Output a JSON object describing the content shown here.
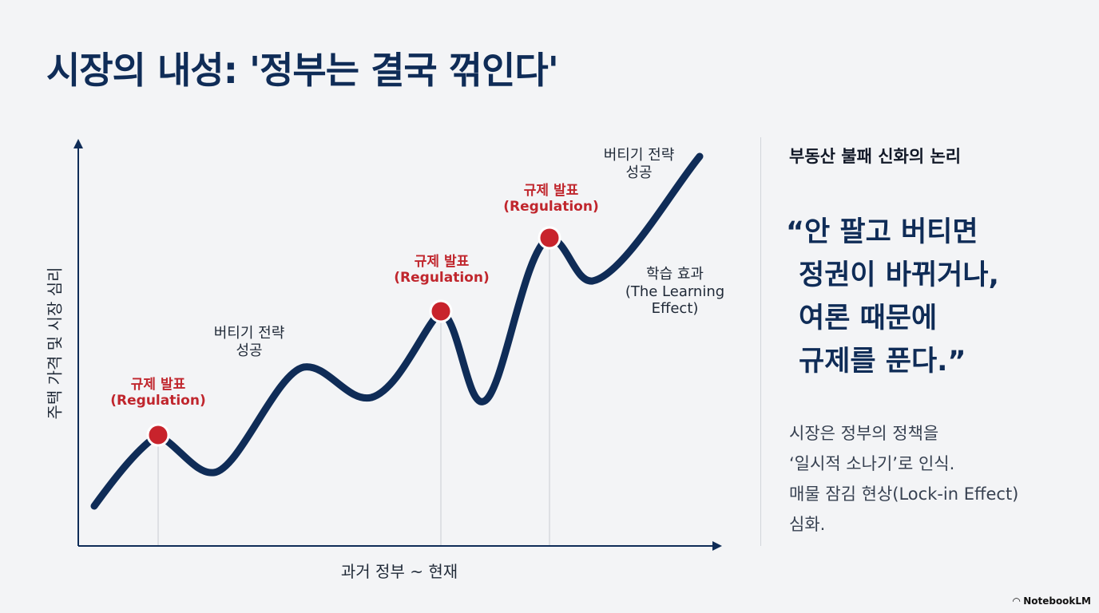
{
  "title": "시장의 내성: '정부는 결국 꺾인다'",
  "diagram": {
    "y_axis_label": "주택 가격 및 시장 심리",
    "x_axis_label": "과거 정부 ~ 현재",
    "regulation_labels": [
      {
        "line1": "규제 발표",
        "line2": "(Regulation)"
      },
      {
        "line1": "규제 발표",
        "line2": "(Regulation)"
      },
      {
        "line1": "규제 발표",
        "line2": "(Regulation)"
      }
    ],
    "annotations": [
      {
        "line1": "버티기 전략",
        "line2": "성공"
      },
      {
        "line1": "버티기 전략",
        "line2": "성공"
      },
      {
        "line1": "학습 효과",
        "line2": "(The Learning",
        "line3": "Effect)"
      }
    ],
    "colors": {
      "curve": "#0f2c57",
      "marker": "#c8232c",
      "axis": "#0f2c57"
    }
  },
  "side_panel": {
    "heading": "부동산 불패 신화의 논리",
    "quote_lines": [
      "“안 팔고 버티면",
      "정권이 바뀌거나,",
      "여론 때문에",
      "규제를 푼다.”"
    ],
    "body_lines": [
      "시장은 정부의 정책을",
      "‘일시적 소나기’로 인식.",
      "매물 잠김 현상(Lock-in Effect)",
      "심화."
    ]
  },
  "brand": "NotebookLM"
}
